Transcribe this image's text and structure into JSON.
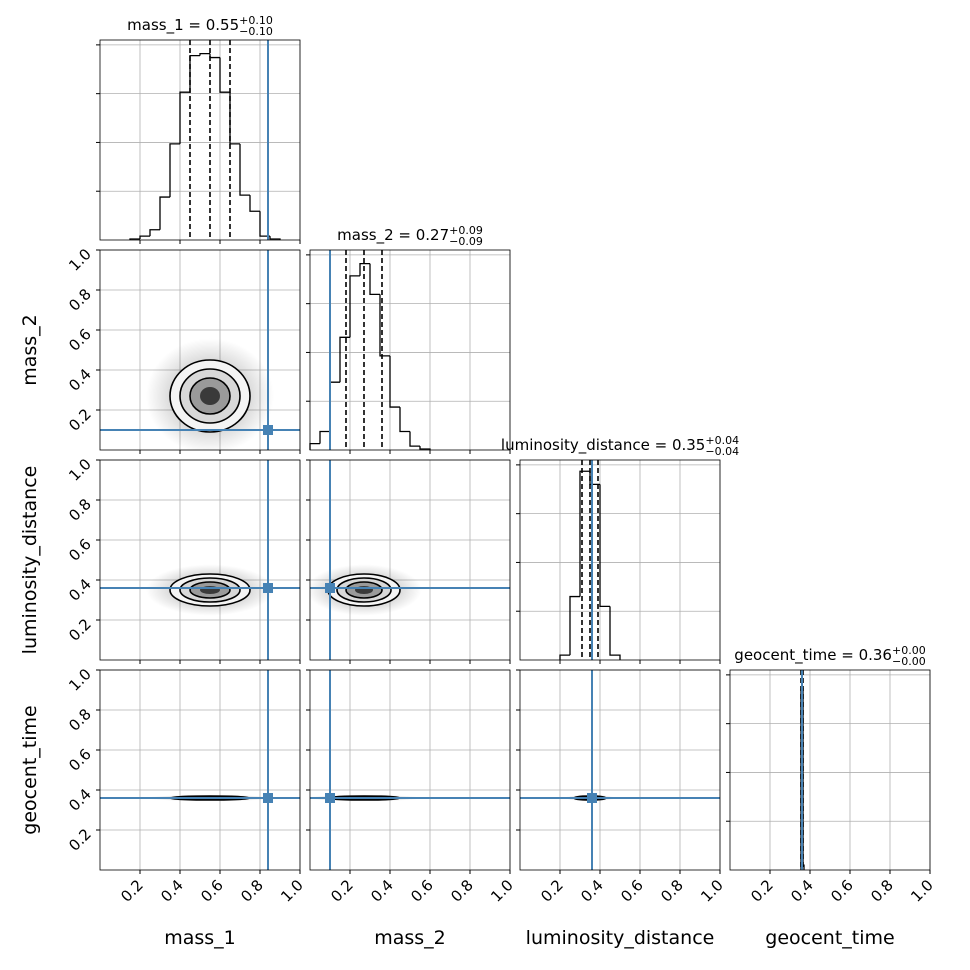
{
  "chart_data": {
    "type": "corner",
    "parameters": [
      {
        "name": "mass_1",
        "title": "mass_1 = 0.55",
        "title_upper": "+0.10",
        "title_lower": "−0.10",
        "truth": 0.84,
        "quantiles": [
          0.45,
          0.55,
          0.65
        ],
        "bins": [
          0.15,
          0.2,
          0.25,
          0.3,
          0.35,
          0.4,
          0.45,
          0.5,
          0.55,
          0.6,
          0.65,
          0.7,
          0.75,
          0.8,
          0.85,
          0.9
        ],
        "counts": [
          0.02,
          0.08,
          0.21,
          0.88,
          1.97,
          3.03,
          3.78,
          3.82,
          3.74,
          3.03,
          1.97,
          0.92,
          0.59,
          0.08,
          0.02
        ]
      },
      {
        "name": "mass_2",
        "title": "mass_2 = 0.27",
        "title_upper": "+0.09",
        "title_lower": "−0.09",
        "truth": 0.1,
        "quantiles": [
          0.18,
          0.27,
          0.36
        ],
        "bins": [
          0,
          0.05,
          0.1,
          0.15,
          0.2,
          0.25,
          0.3,
          0.35,
          0.4,
          0.45,
          0.5,
          0.55,
          0.6
        ],
        "counts": [
          0.13,
          0.38,
          1.39,
          2.31,
          3.57,
          3.82,
          3.19,
          1.93,
          0.88,
          0.38,
          0.08,
          0.02
        ]
      },
      {
        "name": "luminosity_distance",
        "title": "luminosity_distance = 0.35",
        "title_upper": "+0.04",
        "title_lower": "−0.04",
        "truth": 0.36,
        "quantiles": [
          0.31,
          0.35,
          0.39
        ],
        "bins": [
          0.2,
          0.25,
          0.3,
          0.35,
          0.4,
          0.45,
          0.5
        ],
        "counts": [
          0.1,
          1.3,
          3.87,
          3.6,
          1.1,
          0.1
        ]
      },
      {
        "name": "geocent_time",
        "title": "geocent_time = 0.36",
        "title_upper": "+0.00",
        "title_lower": "−0.00",
        "truth": 0.36,
        "quantiles": [
          0.355,
          0.36,
          0.365
        ],
        "bins": [
          0.355,
          0.36,
          0.365,
          0.37
        ],
        "counts": [
          3.7,
          3.73,
          0.1
        ]
      }
    ],
    "xlim": [
      0,
      1
    ],
    "xticks": [
      0.2,
      0.4,
      0.6,
      0.8,
      {
        "value": 1,
        "label": "1.0"
      }
    ],
    "hist_ylim": [
      0,
      4.1
    ],
    "hist_yticks": [
      1,
      2,
      3,
      4
    ],
    "grid": true,
    "hist_color": "#000000",
    "truth_color": "#4682b4",
    "density_color": "#000000"
  }
}
